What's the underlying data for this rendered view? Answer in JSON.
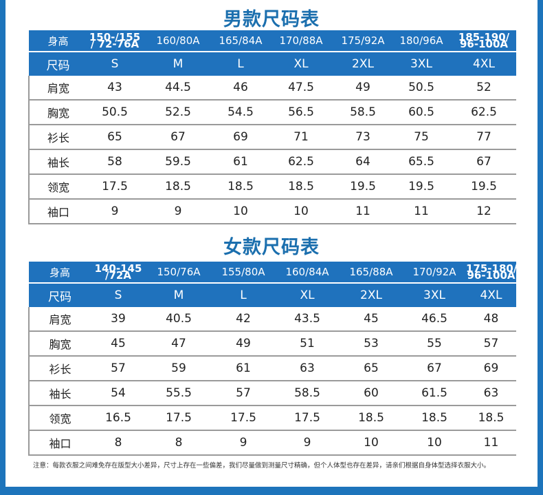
{
  "men": {
    "title": "男款尺码表",
    "row_labels": [
      "身高",
      "尺码",
      "肩宽",
      "胸宽",
      "衫长",
      "袖长",
      "领宽",
      "袖口"
    ],
    "heights": [
      "150-/155\n/ 72-76A",
      "160/80A",
      "165/84A",
      "170/88A",
      "175/92A",
      "180/96A",
      "185-190/\n96-100A"
    ],
    "sizes": [
      "S",
      "M",
      "L",
      "XL",
      "2XL",
      "3XL",
      "4XL"
    ],
    "rows": [
      [
        "43",
        "44.5",
        "46",
        "47.5",
        "49",
        "50.5",
        "52"
      ],
      [
        "50.5",
        "52.5",
        "54.5",
        "56.5",
        "58.5",
        "60.5",
        "62.5"
      ],
      [
        "65",
        "67",
        "69",
        "71",
        "73",
        "75",
        "77"
      ],
      [
        "58",
        "59.5",
        "61",
        "62.5",
        "64",
        "65.5",
        "67"
      ],
      [
        "17.5",
        "18.5",
        "18.5",
        "18.5",
        "19.5",
        "19.5",
        "19.5"
      ],
      [
        "9",
        "9",
        "10",
        "10",
        "11",
        "11",
        "12"
      ]
    ]
  },
  "women": {
    "title": "女款尺码表",
    "row_labels": [
      "身高",
      "尺码",
      "肩宽",
      "胸宽",
      "衫长",
      "袖长",
      "领宽",
      "袖口"
    ],
    "heights": [
      "140-145\n/72A",
      "150/76A",
      "155/80A",
      "160/84A",
      "165/88A",
      "170/92A",
      "175-180/\n96-100A"
    ],
    "sizes": [
      "S",
      "M",
      "L",
      "XL",
      "2XL",
      "3XL",
      "4XL"
    ],
    "rows": [
      [
        "39",
        "40.5",
        "42",
        "43.5",
        "45",
        "46.5",
        "48"
      ],
      [
        "45",
        "47",
        "49",
        "51",
        "53",
        "55",
        "57"
      ],
      [
        "57",
        "59",
        "61",
        "63",
        "65",
        "67",
        "69"
      ],
      [
        "54",
        "55.5",
        "57",
        "58.5",
        "60",
        "61.5",
        "63"
      ],
      [
        "16.5",
        "17.5",
        "17.5",
        "17.5",
        "18.5",
        "18.5",
        "18.5"
      ],
      [
        "8",
        "8",
        "9",
        "9",
        "10",
        "10",
        "11"
      ]
    ]
  },
  "note": "注意：每款衣服之间难免存在版型大小差异，尺寸上存在一些偏差，我们尽量做到测量尺寸精确，但个人体型也存在差异，请亲们根据自身体型选择衣服大小。",
  "colors": {
    "header_blue": "#1f72bd",
    "title_blue": "#1b6fae",
    "frame_blue": "#1d74bb"
  }
}
